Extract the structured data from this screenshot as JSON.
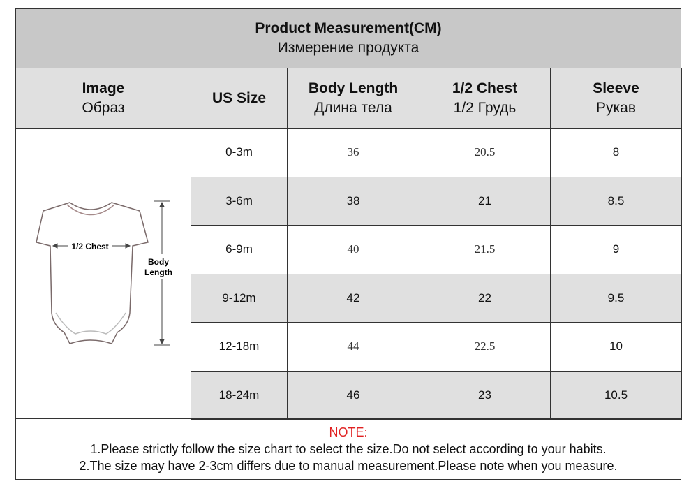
{
  "header": {
    "title": "Product Measurement(CM)",
    "subtitle": "Измерение продукта"
  },
  "table": {
    "columns": [
      [
        "Image",
        "Образ"
      ],
      [
        "US Size"
      ],
      [
        "Body Length",
        "Длина тела"
      ],
      [
        "1/2 Chest",
        "1/2 Грудь"
      ],
      [
        "Sleeve",
        "Рукав"
      ]
    ],
    "rows": [
      [
        "0-3m",
        "36",
        "20.5",
        "8"
      ],
      [
        "3-6m",
        "38",
        "21",
        "8.5"
      ],
      [
        "6-9m",
        "40",
        "21.5",
        "9"
      ],
      [
        "9-12m",
        "42",
        "22",
        "9.5"
      ],
      [
        "12-18m",
        "44",
        "22.5",
        "10"
      ],
      [
        "18-24m",
        "46",
        "23",
        "10.5"
      ]
    ]
  },
  "image": {
    "chest_label": "1/2 Chest",
    "length_label": [
      "Body",
      "Length"
    ]
  },
  "note": {
    "title": "NOTE:",
    "lines": [
      "1.Please strictly follow the size chart to select the size.Do not select according to your habits.",
      "2.The size may have 2-3cm differs due to manual measurement.Please note when you measure."
    ]
  }
}
